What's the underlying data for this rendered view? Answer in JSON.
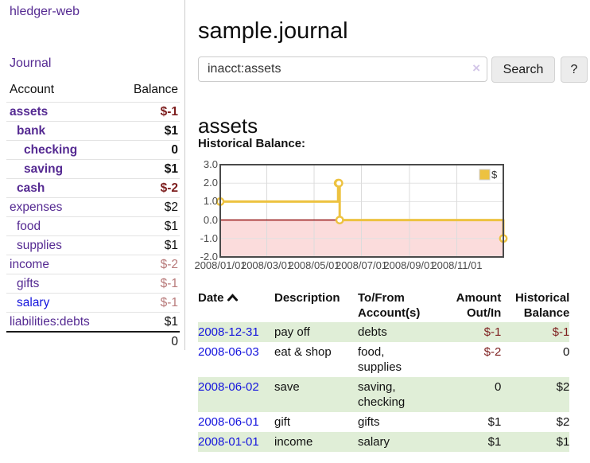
{
  "colors": {
    "brand_purple": "#552a92",
    "link_blue": "#1414dd",
    "negative_dark": "#7d1e1e",
    "negative_faded": "#b87a7a",
    "row_green": "#e0eed7",
    "chart_gold": "#EDC240",
    "chart_negative_fill": "#fbdcdc",
    "chart_zero_line": "#8b0000"
  },
  "sidebar": {
    "brand": "hledger-web",
    "journal_link": "Journal",
    "account_table": {
      "headers": [
        "Account",
        "Balance"
      ],
      "rows": [
        {
          "account": "assets",
          "indent": 1,
          "bold": true,
          "balance": "$-1",
          "balance_class": "neg-strong",
          "blue": false
        },
        {
          "account": "bank",
          "indent": 2,
          "bold": true,
          "balance": "$1",
          "balance_class": "",
          "blue": false
        },
        {
          "account": "checking",
          "indent": 3,
          "bold": true,
          "balance": "0",
          "balance_class": "",
          "blue": false
        },
        {
          "account": "saving",
          "indent": 3,
          "bold": true,
          "balance": "$1",
          "balance_class": "",
          "blue": false
        },
        {
          "account": "cash",
          "indent": 2,
          "bold": true,
          "balance": "$-2",
          "balance_class": "neg-strong",
          "blue": false
        },
        {
          "account": "expenses",
          "indent": 1,
          "bold": false,
          "balance": "$2",
          "balance_class": "",
          "blue": false
        },
        {
          "account": "food",
          "indent": 2,
          "bold": false,
          "balance": "$1",
          "balance_class": "",
          "blue": false
        },
        {
          "account": "supplies",
          "indent": 2,
          "bold": false,
          "balance": "$1",
          "balance_class": "",
          "blue": false
        },
        {
          "account": "income",
          "indent": 1,
          "bold": false,
          "balance": "$-2",
          "balance_class": "neg-faded",
          "blue": false
        },
        {
          "account": "gifts",
          "indent": 2,
          "bold": false,
          "balance": "$-1",
          "balance_class": "neg-faded",
          "blue": false
        },
        {
          "account": "salary",
          "indent": 2,
          "bold": false,
          "balance": "$-1",
          "balance_class": "neg-faded",
          "blue": true
        },
        {
          "account": "liabilities:debts",
          "indent": 1,
          "bold": false,
          "balance": "$1",
          "balance_class": "",
          "blue": false
        }
      ],
      "total": "0"
    }
  },
  "main": {
    "title": "sample.journal",
    "search": {
      "value": "inacct:assets",
      "clear_icon": "×",
      "search_button": "Search",
      "help_button": "?"
    },
    "account_heading": "assets",
    "chart_heading": "Historical Balance:"
  },
  "chart_data": {
    "type": "line",
    "steps": true,
    "title": "Historical Balance",
    "series": [
      {
        "name": "$",
        "color": "#EDC240",
        "points": [
          {
            "date": "2008-01-01",
            "value": 1
          },
          {
            "date": "2008-06-01",
            "value": 2
          },
          {
            "date": "2008-06-02",
            "value": 2
          },
          {
            "date": "2008-06-03",
            "value": 0
          },
          {
            "date": "2008-12-31",
            "value": -1
          }
        ]
      }
    ],
    "x_range": [
      "2008-01-01",
      "2008-12-31"
    ],
    "x_tick_labels": [
      "2008/01/01",
      "2008/03/01",
      "2008/05/01",
      "2008/07/01",
      "2008/09/01",
      "2008/11/01"
    ],
    "y_ticks": [
      3.0,
      2.0,
      1.0,
      0.0,
      -1.0,
      -2.0
    ],
    "ylim": [
      -2,
      3
    ],
    "grid": true,
    "legend_position": "top-right",
    "negative_region_shaded": true
  },
  "register": {
    "columns": [
      "Date",
      "Description",
      "To/From Account(s)",
      "Amount Out/In",
      "Historical Balance"
    ],
    "sort_icon": "chevron-up",
    "rows": [
      {
        "date": "2008-12-31",
        "description": "pay off",
        "accounts": "debts",
        "amount": "$-1",
        "amount_negative": true,
        "balance": "$-1",
        "balance_negative": true
      },
      {
        "date": "2008-06-03",
        "description": "eat & shop",
        "accounts": "food, supplies",
        "amount": "$-2",
        "amount_negative": true,
        "balance": "0",
        "balance_negative": false
      },
      {
        "date": "2008-06-02",
        "description": "save",
        "accounts": "saving, checking",
        "amount": "0",
        "amount_negative": false,
        "balance": "$2",
        "balance_negative": false
      },
      {
        "date": "2008-06-01",
        "description": "gift",
        "accounts": "gifts",
        "amount": "$1",
        "amount_negative": false,
        "balance": "$2",
        "balance_negative": false
      },
      {
        "date": "2008-01-01",
        "description": "income",
        "accounts": "salary",
        "amount": "$1",
        "amount_negative": false,
        "balance": "$1",
        "balance_negative": false
      }
    ]
  }
}
